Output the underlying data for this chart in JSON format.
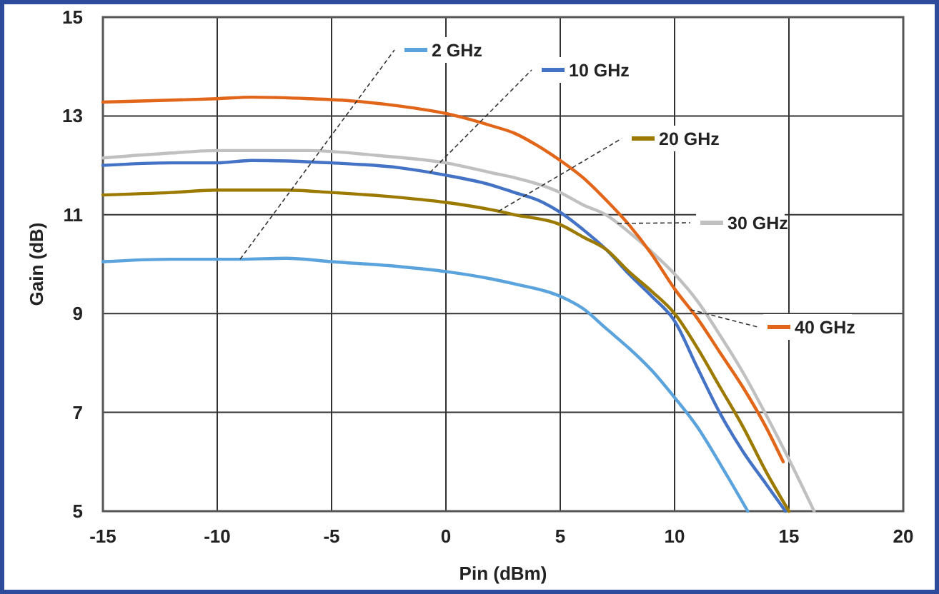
{
  "chart_data": {
    "type": "line",
    "xlabel": "Pin (dBm)",
    "ylabel": "Gain (dB)",
    "xlim": [
      -15,
      20
    ],
    "xticks": [
      -15,
      -10,
      -5,
      0,
      5,
      10,
      15,
      20
    ],
    "ylim": [
      5,
      15
    ],
    "yticks": [
      5,
      7,
      9,
      11,
      13,
      15
    ],
    "grid": true,
    "legend": "top right",
    "line_style": "solid",
    "marker": "none",
    "series": [
      {
        "name": "2 GHz",
        "color": "#5ba3dc",
        "x": [
          -15,
          -12,
          -9,
          -7,
          -5,
          -2,
          0,
          2,
          3,
          5,
          6,
          7,
          8,
          9,
          10,
          11,
          12,
          13.2
        ],
        "values": [
          10.05,
          10.1,
          10.1,
          10.12,
          10.05,
          9.95,
          9.85,
          9.7,
          9.6,
          9.35,
          9.1,
          8.7,
          8.3,
          7.85,
          7.3,
          6.7,
          5.95,
          5
        ]
      },
      {
        "name": "10 GHz",
        "color": "#4472c4",
        "x": [
          -15,
          -12,
          -10,
          -8.5,
          -5,
          -2,
          0,
          2,
          3,
          4,
          5,
          6,
          7,
          8,
          9,
          10,
          11,
          12,
          13,
          14,
          14.85
        ],
        "values": [
          12.0,
          12.05,
          12.05,
          12.1,
          12.05,
          11.95,
          11.8,
          11.6,
          11.45,
          11.3,
          11.05,
          10.7,
          10.3,
          9.8,
          9.35,
          8.85,
          7.9,
          6.97,
          6.2,
          5.55,
          5
        ]
      },
      {
        "name": "20 GHz",
        "color": "#9c7a00",
        "x": [
          -15,
          -12,
          -10,
          -7,
          -5,
          -2,
          0,
          2,
          3,
          5,
          6,
          7,
          8,
          9,
          10,
          11,
          12,
          13,
          14,
          15
        ],
        "values": [
          11.4,
          11.45,
          11.5,
          11.5,
          11.45,
          11.35,
          11.25,
          11.1,
          11.0,
          10.8,
          10.55,
          10.3,
          9.85,
          9.45,
          9.0,
          8.3,
          7.5,
          6.7,
          5.8,
          5
        ]
      },
      {
        "name": "30 GHz",
        "color": "#c0c0c0",
        "x": [
          -15,
          -12,
          -10,
          -6,
          -3,
          0,
          2,
          3,
          5,
          6,
          7,
          8,
          9,
          10,
          11,
          12,
          13,
          14,
          15,
          16.1
        ],
        "values": [
          12.15,
          12.25,
          12.3,
          12.3,
          12.2,
          12.05,
          11.85,
          11.75,
          11.45,
          11.2,
          11.0,
          10.65,
          10.25,
          9.8,
          9.25,
          8.55,
          7.8,
          6.95,
          6.05,
          5
        ]
      },
      {
        "name": "40 GHz",
        "color": "#e2661a",
        "x": [
          -15,
          -12,
          -10,
          -8.5,
          -6,
          -4,
          -2,
          0,
          2,
          3,
          4,
          5,
          6,
          7,
          8,
          9,
          10,
          11,
          12,
          13,
          14,
          14.75
        ],
        "values": [
          13.28,
          13.32,
          13.35,
          13.38,
          13.35,
          13.3,
          13.2,
          13.05,
          12.8,
          12.65,
          12.4,
          12.1,
          11.75,
          11.3,
          10.8,
          10.2,
          9.5,
          8.9,
          8.2,
          7.5,
          6.7,
          6.0
        ]
      }
    ]
  }
}
